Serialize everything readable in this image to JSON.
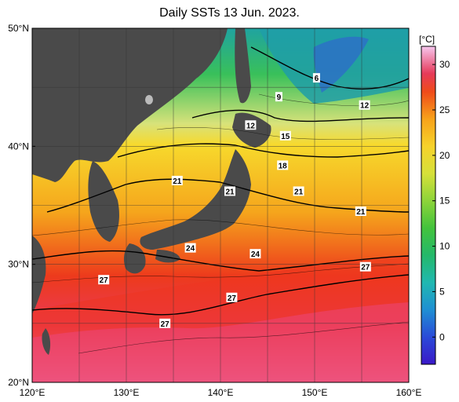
{
  "title": "Daily SSTs 13 Jun. 2023.",
  "map": {
    "lat_ticks": [
      {
        "value": 50,
        "label": "50°N"
      },
      {
        "value": 40,
        "label": "40°N"
      },
      {
        "value": 30,
        "label": "30°N"
      },
      {
        "value": 20,
        "label": "20°N"
      }
    ],
    "lon_ticks": [
      {
        "value": 120,
        "label": "120°E"
      },
      {
        "value": 130,
        "label": "130°E"
      },
      {
        "value": 140,
        "label": "140°E"
      },
      {
        "value": 150,
        "label": "150°E"
      },
      {
        "value": 160,
        "label": "160°E"
      }
    ],
    "extent": {
      "lon": [
        120,
        160
      ],
      "lat": [
        20,
        50
      ]
    },
    "colors": {
      "land": "#4a4a4a",
      "cold": "#2a9d6a",
      "mid": "#f1d23a",
      "warm": "#e8321e",
      "hot": "#ea4fa6"
    },
    "isotherm_labels": [
      {
        "text": "6",
        "lon": 150.2,
        "lat": 45.8
      },
      {
        "text": "9",
        "lon": 146.2,
        "lat": 44.2
      },
      {
        "text": "12",
        "lon": 155.3,
        "lat": 43.5
      },
      {
        "text": "12",
        "lon": 143.2,
        "lat": 41.8
      },
      {
        "text": "15",
        "lon": 146.9,
        "lat": 40.9
      },
      {
        "text": "18",
        "lon": 146.6,
        "lat": 38.4
      },
      {
        "text": "21",
        "lon": 135.4,
        "lat": 37.1
      },
      {
        "text": "21",
        "lon": 141.0,
        "lat": 36.2
      },
      {
        "text": "21",
        "lon": 148.3,
        "lat": 36.2
      },
      {
        "text": "21",
        "lon": 154.9,
        "lat": 34.5
      },
      {
        "text": "24",
        "lon": 136.8,
        "lat": 31.4
      },
      {
        "text": "24",
        "lon": 143.7,
        "lat": 30.9
      },
      {
        "text": "27",
        "lon": 155.4,
        "lat": 29.8
      },
      {
        "text": "27",
        "lon": 127.6,
        "lat": 28.7
      },
      {
        "text": "27",
        "lon": 141.2,
        "lat": 27.2
      },
      {
        "text": "27",
        "lon": 134.1,
        "lat": 25.0
      }
    ]
  },
  "colorbar": {
    "unit": "[°C]",
    "range": [
      -3,
      32
    ],
    "ticks": [
      30,
      25,
      20,
      15,
      10,
      5,
      0
    ],
    "tick_labels": [
      "30",
      "25",
      "20",
      "15",
      "10",
      "5",
      "0"
    ],
    "stops": [
      {
        "value": -3,
        "color": "#3a18c8"
      },
      {
        "value": 0,
        "color": "#2a4ad8"
      },
      {
        "value": 3,
        "color": "#1f8fd3"
      },
      {
        "value": 6,
        "color": "#20b8b0"
      },
      {
        "value": 9,
        "color": "#24b86a"
      },
      {
        "value": 12,
        "color": "#43c33c"
      },
      {
        "value": 15,
        "color": "#8dd43a"
      },
      {
        "value": 18,
        "color": "#d6e03a"
      },
      {
        "value": 21,
        "color": "#f6d22b"
      },
      {
        "value": 24,
        "color": "#f7a21a"
      },
      {
        "value": 27,
        "color": "#ef4b1a"
      },
      {
        "value": 29,
        "color": "#e63a5a"
      },
      {
        "value": 32,
        "color": "#f6c6ee"
      }
    ]
  }
}
